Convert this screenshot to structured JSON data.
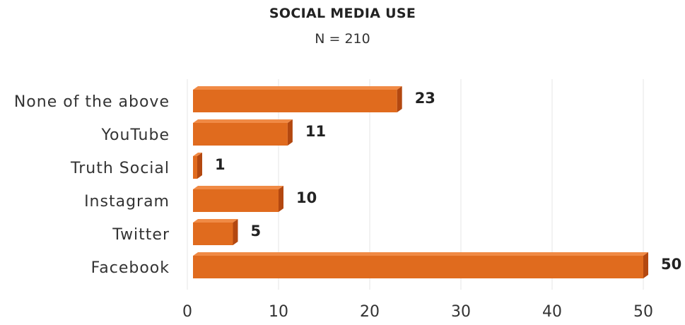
{
  "chart_data": {
    "type": "bar",
    "orientation": "horizontal",
    "title": "SOCIAL MEDIA USE",
    "subtitle": "N = 210",
    "categories": [
      "None of the above",
      "YouTube",
      "Truth Social",
      "Instagram",
      "Twitter",
      "Facebook"
    ],
    "values": [
      23,
      11,
      1,
      10,
      5,
      50
    ],
    "xlim": [
      0,
      50
    ],
    "xticks": [
      0,
      10,
      20,
      30,
      40,
      50
    ],
    "grid": true,
    "data_labels": true,
    "bar_color": "#e06b1e",
    "bar_shade_color": "#b34810",
    "bar_top_color": "#f08a45"
  }
}
